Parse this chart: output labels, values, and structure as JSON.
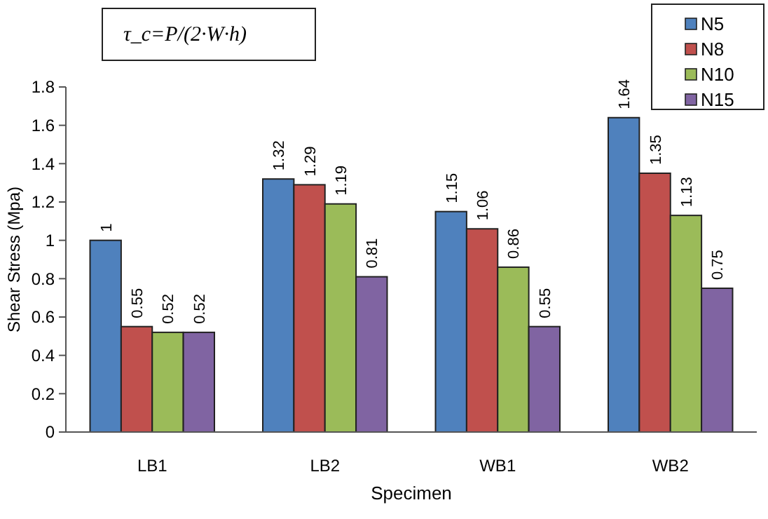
{
  "chart_data": {
    "type": "bar",
    "xlabel": "Specimen",
    "ylabel": "Shear Stress (Mpa)",
    "categories": [
      "LB1",
      "LB2",
      "WB1",
      "WB2"
    ],
    "series": [
      {
        "name": "N5",
        "color": "#4f81bd",
        "values": [
          1,
          1.32,
          1.15,
          1.64
        ]
      },
      {
        "name": "N8",
        "color": "#c0504d",
        "values": [
          0.55,
          1.29,
          1.06,
          1.35
        ]
      },
      {
        "name": "N10",
        "color": "#9bbb59",
        "values": [
          0.52,
          1.19,
          0.86,
          1.13
        ]
      },
      {
        "name": "N15",
        "color": "#8064a2",
        "values": [
          0.52,
          0.81,
          0.55,
          0.75
        ]
      }
    ],
    "ylim": [
      0,
      1.8
    ],
    "yticks": [
      0,
      0.2,
      0.4,
      0.6,
      0.8,
      1,
      1.2,
      1.4,
      1.6,
      1.8
    ],
    "data_labels": true,
    "grid": false,
    "legend": "top right",
    "annotations": [
      "τ_c=P/(2·W·h)"
    ]
  }
}
